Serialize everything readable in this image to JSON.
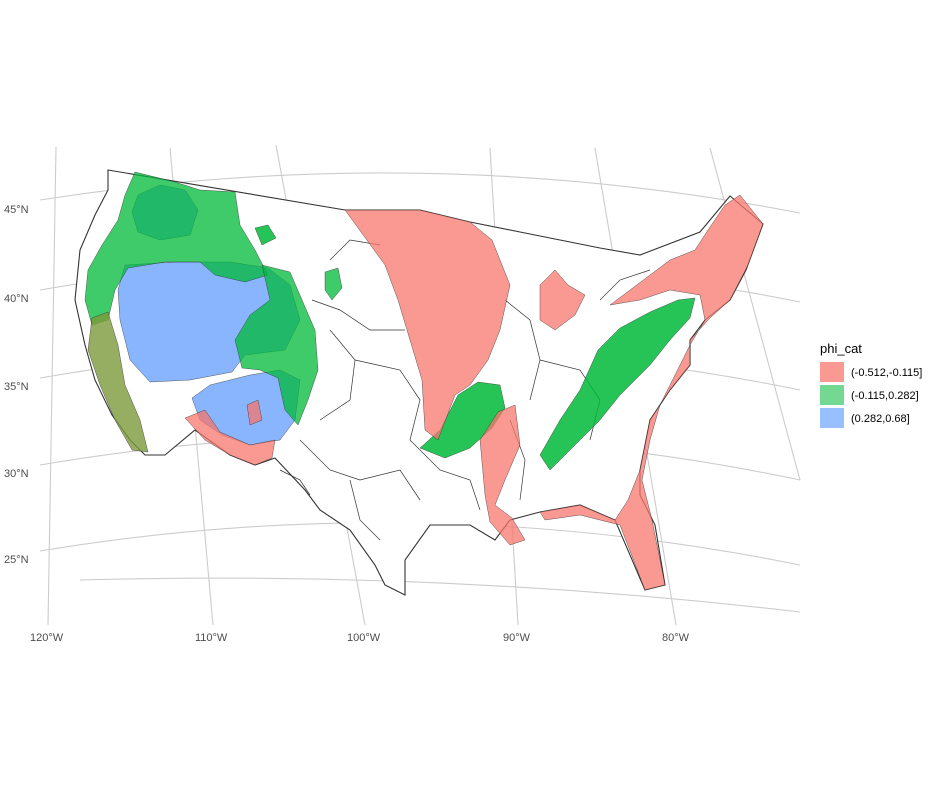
{
  "legend": {
    "title": "phi_cat",
    "items": [
      {
        "label": "(-0.512,-0.115]",
        "color": "#F8766D"
      },
      {
        "label": "(-0.115,0.282]",
        "color": "#00BA38"
      },
      {
        "label": "(0.282,0.68]",
        "color": "#619CFF"
      }
    ]
  },
  "axes": {
    "latitude_labels": [
      "45°N",
      "40°N",
      "35°N",
      "30°N",
      "25°N"
    ],
    "longitude_labels": [
      "120°W",
      "110°W",
      "100°W",
      "90°W",
      "80°W"
    ]
  },
  "colors": {
    "red_fill": "#F8766D",
    "green_fill": "#00BA38",
    "blue_fill": "#619CFF",
    "outline": "#333333",
    "grid": "#CCCCCC"
  }
}
